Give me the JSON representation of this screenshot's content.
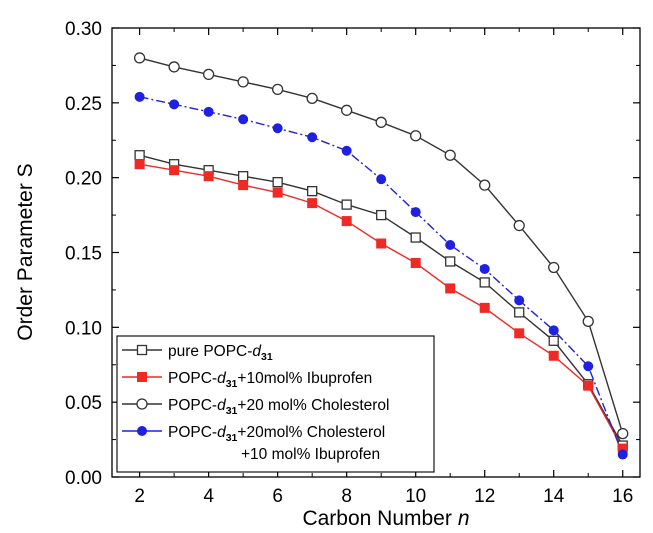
{
  "chart_data": {
    "type": "line",
    "xlabel": "Carbon Number",
    "xlabel_var": "n",
    "ylabel": "Order Parameter S",
    "xlim": [
      1.2,
      16.5
    ],
    "ylim": [
      0.0,
      0.3
    ],
    "xticks": [
      2,
      4,
      6,
      8,
      10,
      12,
      14,
      16
    ],
    "yticks": [
      0.0,
      0.05,
      0.1,
      0.15,
      0.2,
      0.25,
      0.3
    ],
    "ytick_labels": [
      "0.00",
      "0.05",
      "0.10",
      "0.15",
      "0.20",
      "0.25",
      "0.30"
    ],
    "grid": false,
    "legend_position": "bottom-left",
    "x": [
      2,
      3,
      4,
      5,
      6,
      7,
      8,
      9,
      10,
      11,
      12,
      13,
      14,
      15,
      16
    ],
    "series": [
      {
        "name_parts": [
          "pure POPC-",
          "d",
          "31",
          ""
        ],
        "name_line2": "",
        "color": "#333333",
        "marker": "square-open",
        "values": [
          0.215,
          0.209,
          0.205,
          0.201,
          0.197,
          0.191,
          0.182,
          0.175,
          0.16,
          0.144,
          0.13,
          0.11,
          0.091,
          0.062,
          0.021
        ]
      },
      {
        "name_parts": [
          "POPC-",
          "d",
          "31",
          "+10mol% Ibuprofen"
        ],
        "name_line2": "",
        "color": "#ee2a24",
        "marker": "square-filled",
        "values": [
          0.209,
          0.205,
          0.201,
          0.195,
          0.19,
          0.183,
          0.171,
          0.156,
          0.143,
          0.126,
          0.113,
          0.096,
          0.081,
          0.061,
          0.019
        ]
      },
      {
        "name_parts": [
          "POPC-",
          "d",
          "31",
          "+20 mol% Cholesterol"
        ],
        "name_line2": "",
        "color": "#333333",
        "marker": "circle-open",
        "values": [
          0.28,
          0.274,
          0.269,
          0.264,
          0.259,
          0.253,
          0.245,
          0.237,
          0.228,
          0.215,
          0.195,
          0.168,
          0.14,
          0.104,
          0.029
        ]
      },
      {
        "name_parts": [
          "POPC-",
          "d",
          "31",
          "+20mol% Cholesterol"
        ],
        "name_line2": "+10 mol% Ibuprofen",
        "color": "#2020e0",
        "marker": "circle-filled",
        "values": [
          0.254,
          0.249,
          0.244,
          0.239,
          0.233,
          0.227,
          0.218,
          0.199,
          0.177,
          0.155,
          0.139,
          0.118,
          0.098,
          0.074,
          0.015
        ]
      }
    ]
  }
}
